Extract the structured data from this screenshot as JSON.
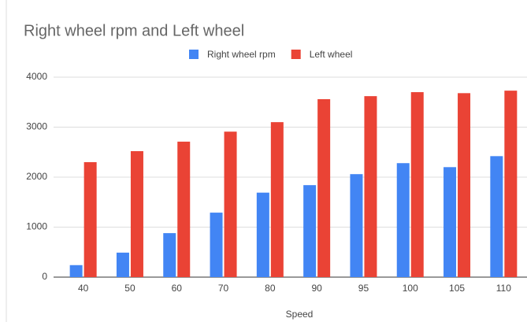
{
  "chart_data": {
    "type": "bar",
    "title": "Right wheel rpm and Left wheel",
    "x_label": "Speed",
    "categories": [
      "40",
      "50",
      "60",
      "70",
      "80",
      "90",
      "95",
      "100",
      "105",
      "110"
    ],
    "series": [
      {
        "name": "Right wheel rpm",
        "color": "#4285f4",
        "values": [
          240,
          490,
          880,
          1290,
          1690,
          1840,
          2060,
          2280,
          2200,
          2420
        ]
      },
      {
        "name": "Left wheel",
        "color": "#ea4335",
        "values": [
          2300,
          2520,
          2710,
          2910,
          3100,
          3560,
          3620,
          3700,
          3680,
          3730
        ]
      }
    ],
    "ylim": [
      0,
      4000
    ],
    "yticks": [
      0,
      1000,
      2000,
      3000,
      4000
    ],
    "grid": true,
    "legend": "top"
  }
}
